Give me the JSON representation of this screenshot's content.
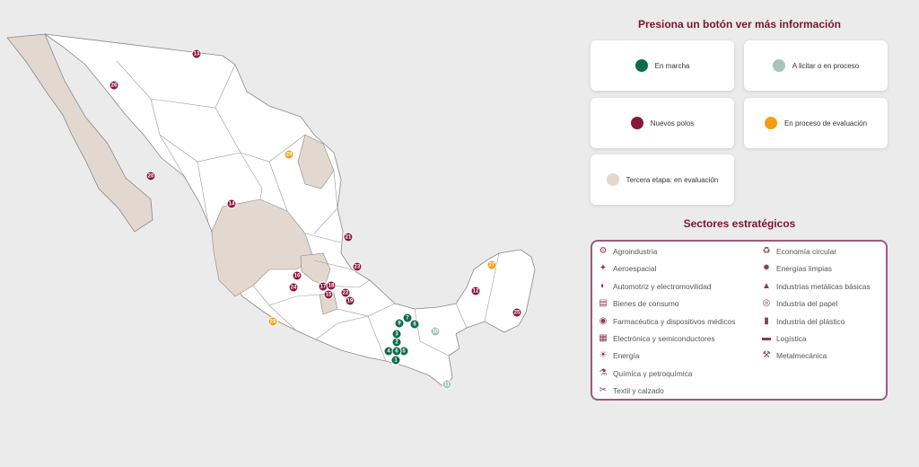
{
  "colors": {
    "en_marcha": "#0f6b49",
    "a_licitar": "#a7c4b9",
    "nuevos_polos": "#8a1738",
    "en_evaluacion": "#f29d12",
    "tercera_etapa": "#e2d8cf",
    "title": "#7a1630",
    "sector_border": "#9a5c7d"
  },
  "panel": {
    "title": "Presiona un botón ver más información",
    "buttons": [
      {
        "label": "En marcha",
        "color_key": "en_marcha"
      },
      {
        "label": "A licitar o en proceso",
        "color_key": "a_licitar"
      },
      {
        "label": "Nuevos polos",
        "color_key": "nuevos_polos"
      },
      {
        "label": "En proceso de evaluación",
        "color_key": "en_evaluacion"
      },
      {
        "label": "Tercera etapa: en evaluación",
        "color_key": "tercera_etapa"
      }
    ],
    "sectors_title": "Sectores estratégicos",
    "sectors_left": [
      {
        "label": "Agroindustria",
        "icon": "tractor-icon"
      },
      {
        "label": "Aeroespacial",
        "icon": "satellite-icon"
      },
      {
        "label": "Automotriz y electromovilidad",
        "icon": "car-icon"
      },
      {
        "label": "Bienes de consumo",
        "icon": "shopping-bag-icon"
      },
      {
        "label": "Farmacéutica y dispositivos médicos",
        "icon": "pills-icon"
      },
      {
        "label": "Electrónica y semiconductores",
        "icon": "chip-icon"
      },
      {
        "label": "Energía",
        "icon": "lightbulb-icon"
      },
      {
        "label": "Química y petroquímica",
        "icon": "flask-icon"
      },
      {
        "label": "Textil y calzado",
        "icon": "sewing-machine-icon"
      }
    ],
    "sectors_right": [
      {
        "label": "Economía circular",
        "icon": "recycle-icon"
      },
      {
        "label": "Energías limpias",
        "icon": "wind-turbine-icon"
      },
      {
        "label": "Industrias metálicas básicas",
        "icon": "factory-icon"
      },
      {
        "label": "Industria del papel",
        "icon": "paper-roll-icon"
      },
      {
        "label": "Industria del plástico",
        "icon": "bottle-icon"
      },
      {
        "label": "Logística",
        "icon": "truck-icon"
      },
      {
        "label": "Metalmecánica",
        "icon": "wrench-icon"
      }
    ]
  },
  "map": {
    "markers": [
      {
        "label": "1",
        "status": "en_marcha"
      },
      {
        "label": "2",
        "status": "en_marcha"
      },
      {
        "label": "3",
        "status": "en_marcha"
      },
      {
        "label": "4",
        "status": "en_marcha"
      },
      {
        "label": "5",
        "status": "en_marcha"
      },
      {
        "label": "6",
        "status": "en_marcha"
      },
      {
        "label": "7",
        "status": "en_marcha"
      },
      {
        "label": "8",
        "status": "en_marcha"
      },
      {
        "label": "9",
        "status": "en_marcha"
      },
      {
        "label": "10",
        "status": "a_licitar"
      },
      {
        "label": "11",
        "status": "a_licitar"
      },
      {
        "label": "12",
        "status": "nuevos_polos"
      },
      {
        "label": "13",
        "status": "nuevos_polos"
      },
      {
        "label": "14",
        "status": "nuevos_polos"
      },
      {
        "label": "15",
        "status": "nuevos_polos"
      },
      {
        "label": "16",
        "status": "nuevos_polos"
      },
      {
        "label": "17",
        "status": "nuevos_polos"
      },
      {
        "label": "18",
        "status": "nuevos_polos"
      },
      {
        "label": "19",
        "status": "nuevos_polos"
      },
      {
        "label": "20",
        "status": "nuevos_polos"
      },
      {
        "label": "21",
        "status": "nuevos_polos"
      },
      {
        "label": "22",
        "status": "nuevos_polos"
      },
      {
        "label": "23",
        "status": "nuevos_polos"
      },
      {
        "label": "24",
        "status": "nuevos_polos"
      },
      {
        "label": "25",
        "status": "nuevos_polos"
      },
      {
        "label": "26",
        "status": "nuevos_polos"
      },
      {
        "label": "27",
        "status": "en_evaluacion"
      },
      {
        "label": "28",
        "status": "en_evaluacion"
      },
      {
        "label": "29",
        "status": "en_evaluacion"
      }
    ]
  }
}
